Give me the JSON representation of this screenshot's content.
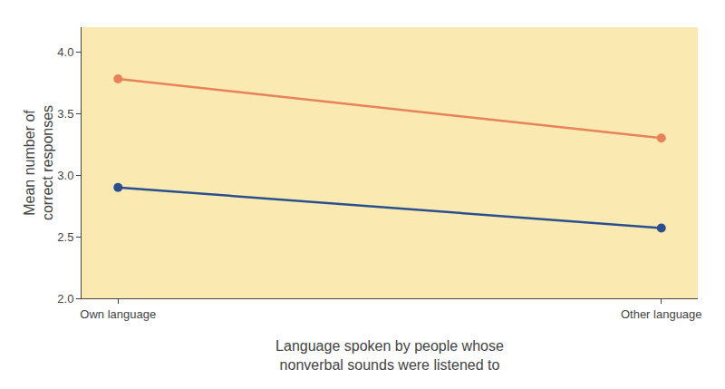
{
  "chart_data": {
    "type": "line",
    "xlabel": "Language spoken by people whose\nnonverbal sounds were listened to",
    "ylabel": "Mean number of\ncorrect responses",
    "categories": [
      "Own language",
      "Other language"
    ],
    "series": [
      {
        "color": "#E8825A",
        "marker": "circle",
        "values": [
          3.78,
          3.3
        ]
      },
      {
        "color": "#2B4F8E",
        "marker": "circle",
        "values": [
          2.9,
          2.57
        ]
      }
    ],
    "ylim": [
      2.0,
      4.2
    ],
    "yticks": [
      {
        "value": 2.0,
        "label": "2.0"
      },
      2.5,
      {
        "value": 3.0,
        "label": "3.0"
      },
      3.5,
      {
        "value": 4.0,
        "label": "4.0"
      }
    ],
    "grid": false
  }
}
